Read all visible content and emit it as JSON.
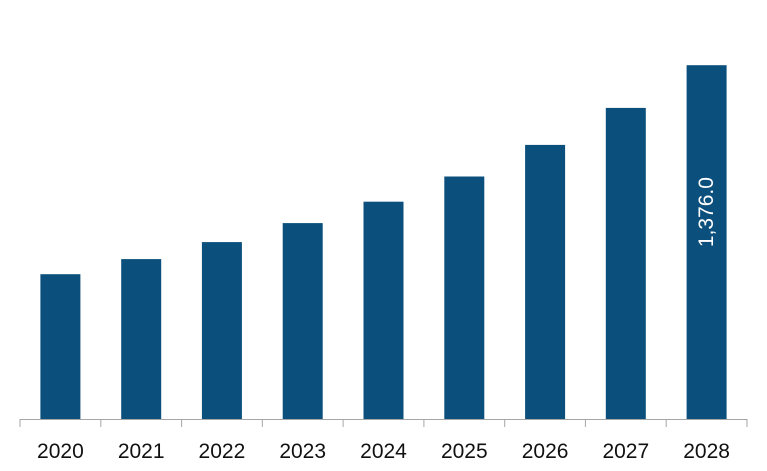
{
  "chart_data": {
    "type": "bar",
    "title": "",
    "xlabel": "",
    "ylabel": "",
    "categories": [
      "2020",
      "2021",
      "2022",
      "2023",
      "2024",
      "2025",
      "2026",
      "2027",
      "2028"
    ],
    "values": [
      563,
      622,
      688,
      762,
      845,
      943,
      1066,
      1210,
      1376.0
    ],
    "data_labels": [
      "",
      "",
      "",
      "",
      "",
      "",
      "",
      "",
      "1,376.0"
    ],
    "ylim": [
      0,
      1400
    ],
    "grid": false,
    "legend": "none",
    "colors": {
      "bar": "#0b4f7c",
      "axis": "#a6a6a6",
      "tick_text": "#111111",
      "data_label_text": "#ffffff"
    }
  }
}
